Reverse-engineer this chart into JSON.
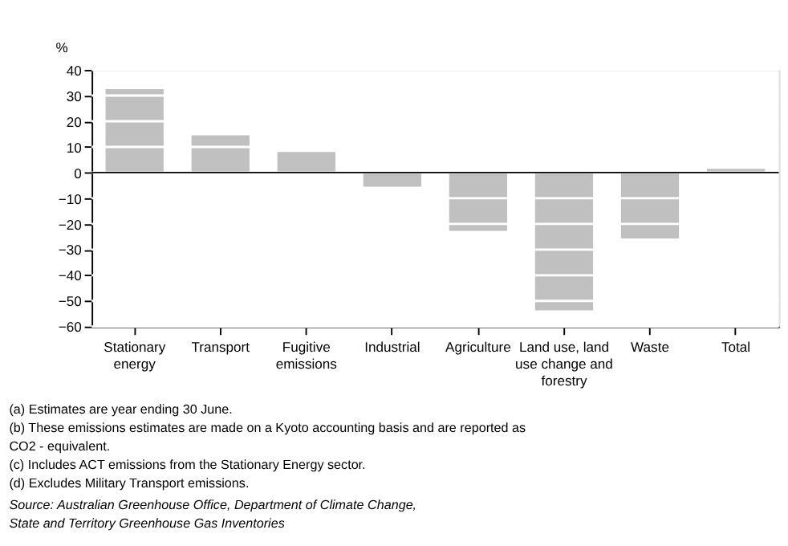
{
  "chart_data": {
    "type": "bar",
    "ylabel": "%",
    "categories": [
      "Stationary energy",
      "Transport",
      "Fugitive emissions",
      "Industrial",
      "Agriculture",
      "Land use, land use change and forestry",
      "Waste",
      "Total"
    ],
    "values": [
      32.5,
      14.5,
      8,
      -5.5,
      -22.7,
      -53.7,
      -25.7,
      1.5
    ],
    "color": "#c0c0c0",
    "ylim": [
      -60,
      40
    ],
    "yticks": [
      -60,
      -50,
      -40,
      -30,
      -20,
      -10,
      0,
      10,
      20,
      30,
      40
    ],
    "grid": "y",
    "ref_lines": [
      {
        "axis": "y",
        "value": 0,
        "color": "#000000"
      }
    ],
    "annotations": [
      "(a) Estimates are year ending 30 June.",
      "(b) These emissions estimates are made on a Kyoto accounting basis and are reported as CO2 - equivalent.",
      "(c) Includes ACT emissions from the Stationary Energy sector.",
      "(d) Excludes Military Transport emissions.",
      "Source: Australian Greenhouse Office, Department of Climate Change, State and Territory Greenhouse Gas Inventories"
    ]
  }
}
